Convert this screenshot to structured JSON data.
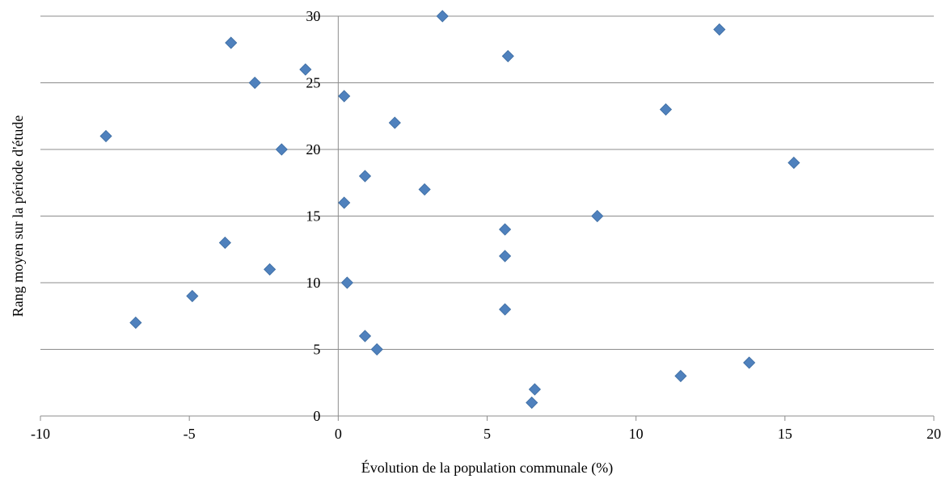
{
  "chart_data": {
    "type": "scatter",
    "title": "",
    "xlabel": "Évolution de la population communale (%)",
    "ylabel": "Rang moyen sur la période d'étude",
    "xlim": [
      -10,
      20
    ],
    "ylim": [
      0,
      30
    ],
    "x_ticks": [
      -10,
      -5,
      0,
      5,
      10,
      15,
      20
    ],
    "y_ticks": [
      0,
      5,
      10,
      15,
      20,
      25,
      30
    ],
    "grid": "horizontal",
    "legend": "none",
    "marker": "diamond",
    "marker_color": "#4f81bd",
    "series": [
      {
        "points": [
          {
            "x": 6.5,
            "y": 1
          },
          {
            "x": 6.6,
            "y": 2
          },
          {
            "x": 11.5,
            "y": 3
          },
          {
            "x": 13.8,
            "y": 4
          },
          {
            "x": 1.3,
            "y": 5
          },
          {
            "x": 0.9,
            "y": 6
          },
          {
            "x": -6.8,
            "y": 7
          },
          {
            "x": 5.6,
            "y": 8
          },
          {
            "x": -4.9,
            "y": 9
          },
          {
            "x": 0.3,
            "y": 10
          },
          {
            "x": -2.3,
            "y": 11
          },
          {
            "x": 5.6,
            "y": 12
          },
          {
            "x": -3.8,
            "y": 13
          },
          {
            "x": 5.6,
            "y": 14
          },
          {
            "x": 8.7,
            "y": 15
          },
          {
            "x": 0.2,
            "y": 16
          },
          {
            "x": 2.9,
            "y": 17
          },
          {
            "x": 0.9,
            "y": 18
          },
          {
            "x": 15.3,
            "y": 19
          },
          {
            "x": -1.9,
            "y": 20
          },
          {
            "x": -7.8,
            "y": 21
          },
          {
            "x": 1.9,
            "y": 22
          },
          {
            "x": 11.0,
            "y": 23
          },
          {
            "x": 0.2,
            "y": 24
          },
          {
            "x": -2.8,
            "y": 25
          },
          {
            "x": -1.1,
            "y": 26
          },
          {
            "x": 5.7,
            "y": 27
          },
          {
            "x": -3.6,
            "y": 28
          },
          {
            "x": 12.8,
            "y": 29
          },
          {
            "x": 3.5,
            "y": 30
          }
        ]
      }
    ]
  }
}
